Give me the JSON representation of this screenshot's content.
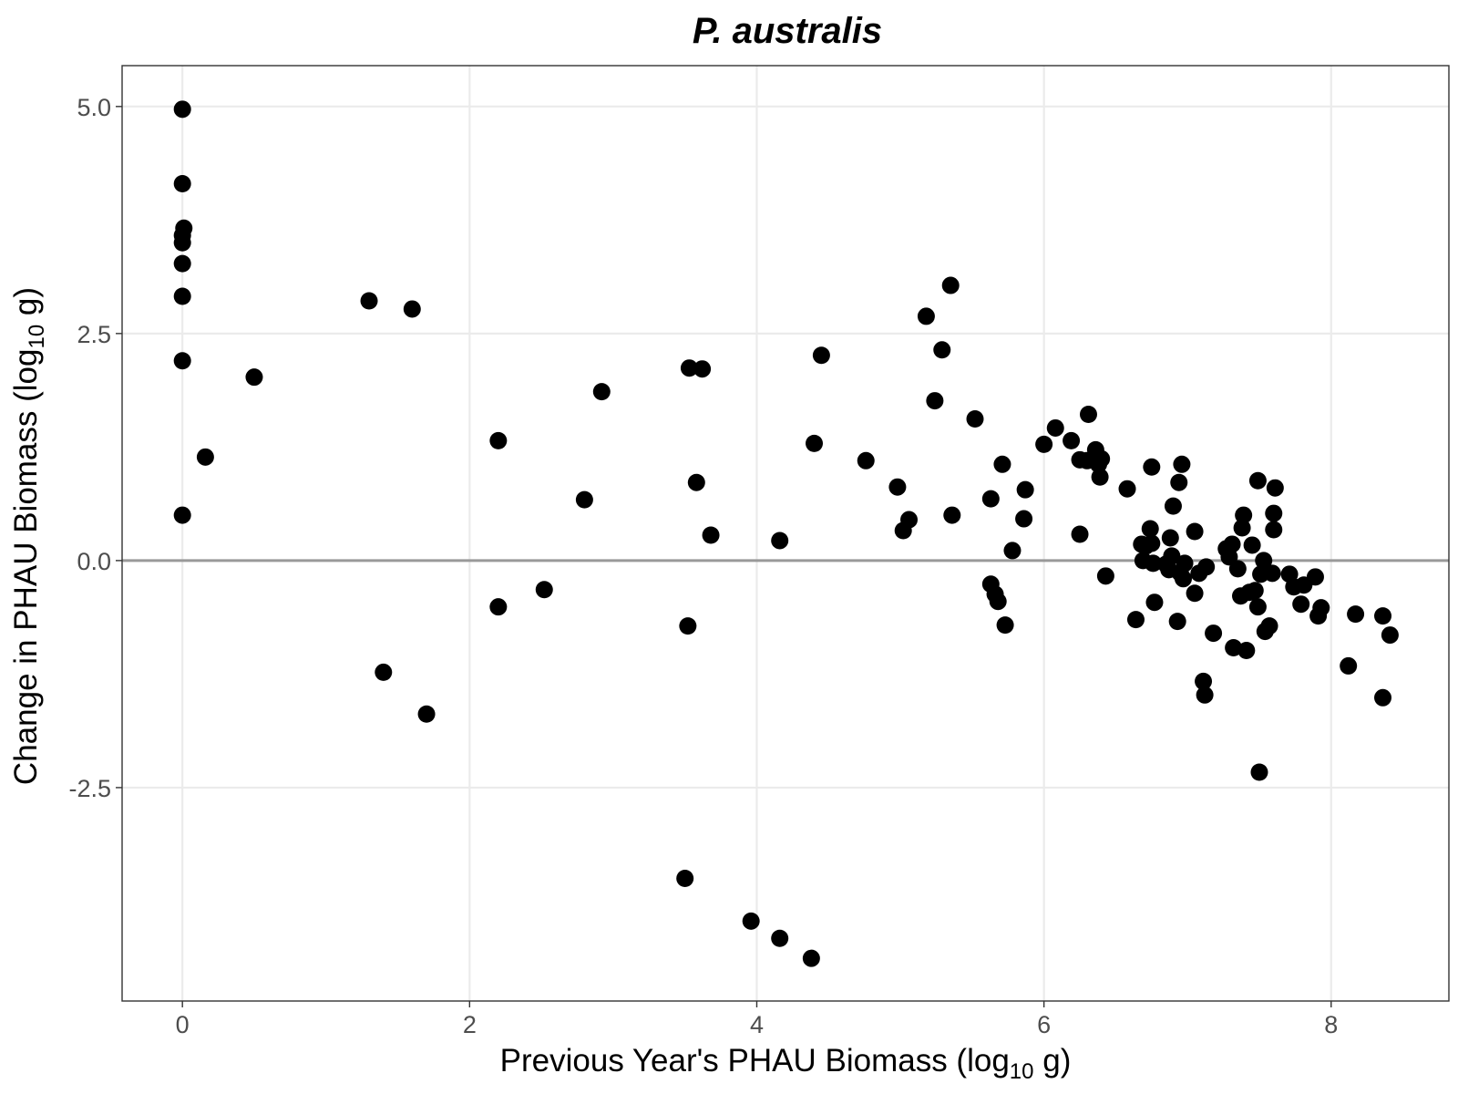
{
  "chart_data": {
    "type": "scatter",
    "title": "P. australis",
    "xlabel": {
      "main": "Previous Year's PHAU Biomass (log",
      "sub": "10",
      "end": " g)"
    },
    "ylabel": {
      "main": "Change in PHAU Biomass (log",
      "sub": "10",
      "end": " g)"
    },
    "xlim": [
      -0.42,
      8.82
    ],
    "ylim": [
      -4.85,
      5.45
    ],
    "x_ticks": [
      0,
      2,
      4,
      6,
      8
    ],
    "x_tick_labels": [
      "0",
      "2",
      "4",
      "6",
      "8"
    ],
    "y_ticks": [
      5.0,
      2.5,
      0.0,
      -2.5
    ],
    "y_tick_labels": [
      "5.0",
      "2.5",
      "0.0",
      "-2.5"
    ],
    "reference_line_y": 0,
    "grid": true,
    "point_color": "#000000",
    "grid_color": "#ebebeb",
    "reference_line_color": "#999999",
    "points": [
      {
        "x": 0.0,
        "y": 4.97
      },
      {
        "x": 0.0,
        "y": 4.15
      },
      {
        "x": 0.01,
        "y": 3.66
      },
      {
        "x": 0.0,
        "y": 3.58
      },
      {
        "x": 0.0,
        "y": 3.5
      },
      {
        "x": 0.0,
        "y": 3.27
      },
      {
        "x": 0.0,
        "y": 2.91
      },
      {
        "x": 0.0,
        "y": 2.2
      },
      {
        "x": 0.0,
        "y": 0.5
      },
      {
        "x": 0.16,
        "y": 1.14
      },
      {
        "x": 0.5,
        "y": 2.02
      },
      {
        "x": 1.3,
        "y": 2.86
      },
      {
        "x": 1.6,
        "y": 2.77
      },
      {
        "x": 1.4,
        "y": -1.23
      },
      {
        "x": 1.7,
        "y": -1.69
      },
      {
        "x": 2.2,
        "y": 1.32
      },
      {
        "x": 2.2,
        "y": -0.51
      },
      {
        "x": 2.52,
        "y": -0.32
      },
      {
        "x": 2.8,
        "y": 0.67
      },
      {
        "x": 2.92,
        "y": 1.86
      },
      {
        "x": 3.53,
        "y": 2.12
      },
      {
        "x": 3.62,
        "y": 2.11
      },
      {
        "x": 3.58,
        "y": 0.86
      },
      {
        "x": 3.68,
        "y": 0.28
      },
      {
        "x": 3.52,
        "y": -0.72
      },
      {
        "x": 3.5,
        "y": -3.5
      },
      {
        "x": 3.96,
        "y": -3.97
      },
      {
        "x": 4.16,
        "y": -4.16
      },
      {
        "x": 4.16,
        "y": 0.22
      },
      {
        "x": 4.38,
        "y": -4.38
      },
      {
        "x": 4.4,
        "y": 1.29
      },
      {
        "x": 4.45,
        "y": 2.26
      },
      {
        "x": 4.76,
        "y": 1.1
      },
      {
        "x": 4.98,
        "y": 0.81
      },
      {
        "x": 5.02,
        "y": 0.33
      },
      {
        "x": 5.06,
        "y": 0.45
      },
      {
        "x": 5.18,
        "y": 2.69
      },
      {
        "x": 5.24,
        "y": 1.76
      },
      {
        "x": 5.29,
        "y": 2.32
      },
      {
        "x": 5.35,
        "y": 3.03
      },
      {
        "x": 5.36,
        "y": 0.5
      },
      {
        "x": 5.52,
        "y": 1.56
      },
      {
        "x": 5.63,
        "y": 0.68
      },
      {
        "x": 5.63,
        "y": -0.26
      },
      {
        "x": 5.66,
        "y": -0.37
      },
      {
        "x": 5.68,
        "y": -0.45
      },
      {
        "x": 5.71,
        "y": 1.06
      },
      {
        "x": 5.73,
        "y": -0.71
      },
      {
        "x": 5.78,
        "y": 0.11
      },
      {
        "x": 5.86,
        "y": 0.46
      },
      {
        "x": 5.87,
        "y": 0.78
      },
      {
        "x": 6.0,
        "y": 1.28
      },
      {
        "x": 6.08,
        "y": 1.46
      },
      {
        "x": 6.19,
        "y": 1.32
      },
      {
        "x": 6.25,
        "y": 1.11
      },
      {
        "x": 6.25,
        "y": 0.29
      },
      {
        "x": 6.3,
        "y": 1.1
      },
      {
        "x": 6.31,
        "y": 1.61
      },
      {
        "x": 6.36,
        "y": 1.22
      },
      {
        "x": 6.38,
        "y": 1.06
      },
      {
        "x": 6.39,
        "y": 0.92
      },
      {
        "x": 6.4,
        "y": 1.12
      },
      {
        "x": 6.43,
        "y": -0.17
      },
      {
        "x": 6.58,
        "y": 0.79
      },
      {
        "x": 6.64,
        "y": -0.65
      },
      {
        "x": 6.68,
        "y": 0.18
      },
      {
        "x": 6.69,
        "y": 0.0
      },
      {
        "x": 6.71,
        "y": 0.16
      },
      {
        "x": 6.74,
        "y": 0.35
      },
      {
        "x": 6.75,
        "y": 0.19
      },
      {
        "x": 6.75,
        "y": 1.03
      },
      {
        "x": 6.76,
        "y": -0.03
      },
      {
        "x": 6.77,
        "y": -0.46
      },
      {
        "x": 6.85,
        "y": -0.04
      },
      {
        "x": 6.87,
        "y": -0.1
      },
      {
        "x": 6.88,
        "y": 0.25
      },
      {
        "x": 6.89,
        "y": 0.05
      },
      {
        "x": 6.9,
        "y": 0.6
      },
      {
        "x": 6.93,
        "y": -0.67
      },
      {
        "x": 6.94,
        "y": 0.86
      },
      {
        "x": 6.96,
        "y": 1.06
      },
      {
        "x": 6.95,
        "y": -0.14
      },
      {
        "x": 6.97,
        "y": -0.2
      },
      {
        "x": 6.98,
        "y": -0.03
      },
      {
        "x": 7.05,
        "y": 0.32
      },
      {
        "x": 7.05,
        "y": -0.36
      },
      {
        "x": 7.08,
        "y": -0.14
      },
      {
        "x": 7.11,
        "y": -1.33
      },
      {
        "x": 7.12,
        "y": -1.48
      },
      {
        "x": 7.13,
        "y": -0.07
      },
      {
        "x": 7.18,
        "y": -0.8
      },
      {
        "x": 7.27,
        "y": 0.13
      },
      {
        "x": 7.29,
        "y": 0.04
      },
      {
        "x": 7.31,
        "y": 0.18
      },
      {
        "x": 7.32,
        "y": -0.96
      },
      {
        "x": 7.35,
        "y": -0.09
      },
      {
        "x": 7.37,
        "y": -0.39
      },
      {
        "x": 7.38,
        "y": 0.36
      },
      {
        "x": 7.39,
        "y": 0.5
      },
      {
        "x": 7.41,
        "y": -0.99
      },
      {
        "x": 7.43,
        "y": -0.35
      },
      {
        "x": 7.45,
        "y": 0.17
      },
      {
        "x": 7.47,
        "y": -0.33
      },
      {
        "x": 7.49,
        "y": -0.51
      },
      {
        "x": 7.49,
        "y": 0.88
      },
      {
        "x": 7.5,
        "y": -2.33
      },
      {
        "x": 7.51,
        "y": -0.15
      },
      {
        "x": 7.53,
        "y": 0.0
      },
      {
        "x": 7.54,
        "y": -0.78
      },
      {
        "x": 7.57,
        "y": -0.72
      },
      {
        "x": 7.59,
        "y": -0.14
      },
      {
        "x": 7.6,
        "y": 0.52
      },
      {
        "x": 7.6,
        "y": 0.34
      },
      {
        "x": 7.61,
        "y": 0.8
      },
      {
        "x": 7.71,
        "y": -0.15
      },
      {
        "x": 7.74,
        "y": -0.29
      },
      {
        "x": 7.79,
        "y": -0.48
      },
      {
        "x": 7.81,
        "y": -0.27
      },
      {
        "x": 7.89,
        "y": -0.18
      },
      {
        "x": 7.91,
        "y": -0.61
      },
      {
        "x": 7.93,
        "y": -0.52
      },
      {
        "x": 8.12,
        "y": -1.16
      },
      {
        "x": 8.17,
        "y": -0.59
      },
      {
        "x": 8.36,
        "y": -0.61
      },
      {
        "x": 8.36,
        "y": -1.51
      },
      {
        "x": 8.41,
        "y": -0.82
      }
    ]
  }
}
